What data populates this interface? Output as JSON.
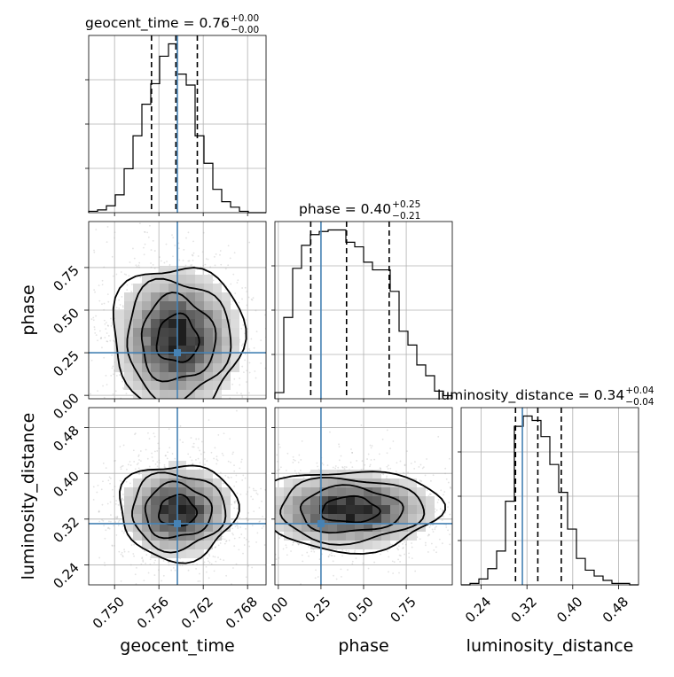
{
  "chart_data": {
    "type": "corner",
    "parameters": [
      "geocent_time",
      "phase",
      "luminosity_distance"
    ],
    "titles": {
      "geocent_time": {
        "prefix": "geocent_time = ",
        "value": "0.76",
        "plus": "+0.00",
        "minus": "−0.00"
      },
      "phase": {
        "prefix": "phase = ",
        "value": "0.40",
        "plus": "+0.25",
        "minus": "−0.21"
      },
      "luminosity_distance": {
        "prefix": "luminosity_distance = ",
        "value": "0.34",
        "plus": "+0.04",
        "minus": "−0.04"
      }
    },
    "axes": {
      "geocent_time": {
        "range": [
          0.7465,
          0.7705
        ],
        "ticks": [
          0.75,
          0.756,
          0.762,
          0.768
        ],
        "tick_labels": [
          "0.750",
          "0.756",
          "0.762",
          "0.768"
        ]
      },
      "phase": {
        "range": [
          -0.02,
          1.02
        ],
        "ticks": [
          0.0,
          0.25,
          0.5,
          0.75
        ],
        "tick_labels": [
          "0.00",
          "0.25",
          "0.50",
          "0.75"
        ]
      },
      "luminosity_distance": {
        "range": [
          0.205,
          0.515
        ],
        "ticks": [
          0.24,
          0.32,
          0.4,
          0.48
        ],
        "tick_labels": [
          "0.24",
          "0.32",
          "0.40",
          "0.48"
        ]
      }
    },
    "truths": {
      "geocent_time": 0.7585,
      "phase": 0.25,
      "luminosity_distance": 0.312
    },
    "quantiles": {
      "geocent_time": [
        0.755,
        0.7583,
        0.7612
      ],
      "phase": [
        0.19,
        0.4,
        0.65
      ],
      "luminosity_distance": [
        0.3,
        0.339,
        0.38
      ]
    },
    "histograms": {
      "geocent_time": {
        "edges": [
          0.7465,
          0.7477,
          0.7489,
          0.7501,
          0.7513,
          0.7525,
          0.7537,
          0.7549,
          0.7561,
          0.7573,
          0.7585,
          0.7597,
          0.7609,
          0.7621,
          0.7633,
          0.7645,
          0.7657,
          0.7669,
          0.7681,
          0.7693,
          0.7705
        ],
        "counts": [
          1,
          2,
          5,
          13,
          32,
          56,
          79,
          94,
          114,
          123,
          101,
          93,
          56,
          36,
          17,
          8,
          4,
          1,
          0,
          0
        ]
      },
      "phase": {
        "edges": [
          -0.02,
          0.032,
          0.084,
          0.136,
          0.188,
          0.24,
          0.292,
          0.344,
          0.396,
          0.448,
          0.5,
          0.552,
          0.604,
          0.656,
          0.708,
          0.76,
          0.812,
          0.864,
          0.916,
          0.968,
          1.02
        ],
        "counts": [
          4,
          53,
          85,
          100,
          107,
          109,
          110,
          110,
          102,
          99,
          89,
          84,
          84,
          70,
          44,
          35,
          22,
          15,
          5,
          2
        ]
      },
      "luminosity_distance": {
        "edges": [
          0.205,
          0.2205,
          0.236,
          0.2515,
          0.267,
          0.2825,
          0.298,
          0.3135,
          0.329,
          0.3445,
          0.36,
          0.3755,
          0.391,
          0.4065,
          0.422,
          0.4375,
          0.453,
          0.4685,
          0.484,
          0.4995,
          0.515
        ],
        "counts": [
          0,
          1,
          4,
          11,
          23,
          57,
          108,
          115,
          112,
          101,
          82,
          63,
          38,
          18,
          10,
          6,
          3,
          1,
          1,
          0
        ]
      }
    },
    "density": {
      "phase_vs_geocent_time": {
        "center": [
          0.7585,
          0.33
        ],
        "sigma": [
          0.004,
          0.2
        ]
      },
      "luminosity_distance_vs_geocent_time": {
        "center": [
          0.7585,
          0.334
        ],
        "sigma": [
          0.0036,
          0.038
        ]
      },
      "luminosity_distance_vs_phase": {
        "center": [
          0.42,
          0.336
        ],
        "sigma": [
          0.24,
          0.032
        ]
      }
    },
    "grid": true,
    "colors": {
      "truth": "#4682b4",
      "contour": "#000000",
      "points": "#9a9a9a"
    }
  }
}
